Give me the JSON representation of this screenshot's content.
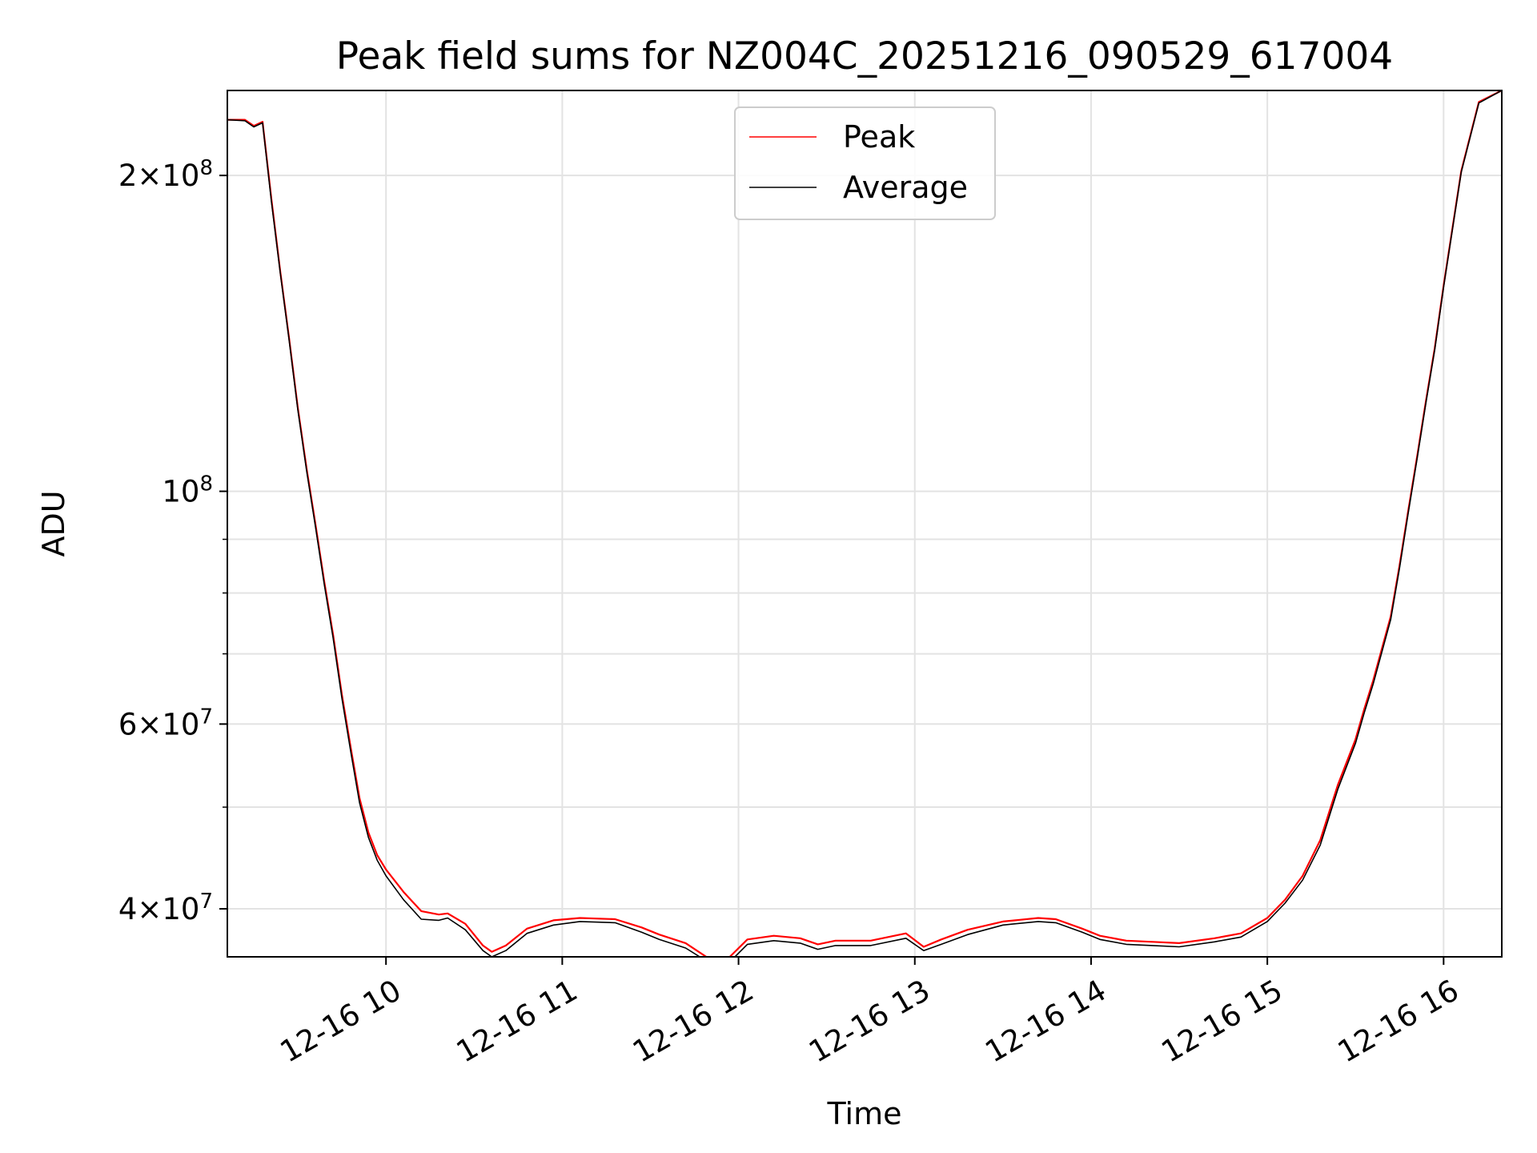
{
  "chart_data": {
    "type": "line",
    "title": "Peak field sums for NZ004C_20251216_090529_617004",
    "xlabel": "Time",
    "ylabel": "ADU",
    "yscale": "log",
    "xlim": [
      9.1,
      16.33
    ],
    "ylim": [
      36000000,
      241000000
    ],
    "grid": true,
    "legend_position": "upper-center",
    "x_ticks": [
      {
        "value": 10,
        "label": "12-16 10"
      },
      {
        "value": 11,
        "label": "12-16 11"
      },
      {
        "value": 12,
        "label": "12-16 12"
      },
      {
        "value": 13,
        "label": "12-16 13"
      },
      {
        "value": 14,
        "label": "12-16 14"
      },
      {
        "value": 15,
        "label": "12-16 15"
      },
      {
        "value": 16,
        "label": "12-16 16"
      }
    ],
    "y_major_ticks": [
      {
        "value": 40000000,
        "mantissa": "4",
        "exponent": "7"
      },
      {
        "value": 60000000,
        "mantissa": "6",
        "exponent": "7"
      },
      {
        "value": 100000000,
        "mantissa": "",
        "exponent": "8"
      },
      {
        "value": 200000000,
        "mantissa": "2",
        "exponent": "8"
      }
    ],
    "y_minor_ticks": [
      50000000,
      70000000,
      80000000,
      90000000
    ],
    "series": [
      {
        "name": "Peak",
        "color": "#ff0000",
        "x": [
          9.1,
          9.2,
          9.25,
          9.3,
          9.35,
          9.4,
          9.45,
          9.5,
          9.55,
          9.6,
          9.65,
          9.7,
          9.75,
          9.8,
          9.85,
          9.9,
          9.95,
          10.0,
          10.1,
          10.2,
          10.3,
          10.35,
          10.45,
          10.55,
          10.6,
          10.68,
          10.8,
          10.95,
          11.1,
          11.3,
          11.45,
          11.55,
          11.7,
          11.85,
          11.95,
          12.05,
          12.2,
          12.35,
          12.45,
          12.55,
          12.75,
          12.95,
          13.05,
          13.15,
          13.3,
          13.5,
          13.7,
          13.8,
          13.95,
          14.05,
          14.2,
          14.35,
          14.5,
          14.7,
          14.85,
          15.0,
          15.1,
          15.2,
          15.3,
          15.4,
          15.5,
          15.55,
          15.6,
          15.7,
          15.75,
          15.8,
          15.85,
          15.9,
          15.95,
          16.0,
          16.05,
          16.1,
          16.2,
          16.33
        ],
        "y": [
          226000000,
          226000000,
          223000000,
          225000000,
          190000000,
          162000000,
          140000000,
          120000000,
          105000000,
          93000000,
          82000000,
          73000000,
          64000000,
          57000000,
          51000000,
          47300000,
          45000000,
          43600000,
          41500000,
          39800000,
          39500000,
          39600000,
          38700000,
          36900000,
          36400000,
          36900000,
          38300000,
          39000000,
          39200000,
          39100000,
          38400000,
          37800000,
          37100000,
          35700000,
          36000000,
          37400000,
          37700000,
          37500000,
          37000000,
          37300000,
          37300000,
          37900000,
          36800000,
          37400000,
          38200000,
          38900000,
          39200000,
          39100000,
          38300000,
          37700000,
          37300000,
          37200000,
          37100000,
          37500000,
          37900000,
          39200000,
          40800000,
          43000000,
          46500000,
          52500000,
          58000000,
          62000000,
          66000000,
          76000000,
          85000000,
          96000000,
          108000000,
          122000000,
          137000000,
          157000000,
          178000000,
          202000000,
          235000000,
          241000000
        ]
      },
      {
        "name": "Average",
        "color": "#000000",
        "x": [
          9.1,
          9.2,
          9.25,
          9.3,
          9.35,
          9.4,
          9.45,
          9.5,
          9.55,
          9.6,
          9.65,
          9.7,
          9.75,
          9.8,
          9.85,
          9.9,
          9.95,
          10.0,
          10.1,
          10.2,
          10.3,
          10.35,
          10.45,
          10.55,
          10.6,
          10.68,
          10.8,
          10.95,
          11.1,
          11.3,
          11.45,
          11.55,
          11.7,
          11.85,
          11.95,
          12.05,
          12.2,
          12.35,
          12.45,
          12.55,
          12.75,
          12.95,
          13.05,
          13.15,
          13.3,
          13.5,
          13.7,
          13.8,
          13.95,
          14.05,
          14.2,
          14.35,
          14.5,
          14.7,
          14.85,
          15.0,
          15.1,
          15.2,
          15.3,
          15.4,
          15.5,
          15.55,
          15.6,
          15.7,
          15.75,
          15.8,
          15.85,
          15.9,
          15.95,
          16.0,
          16.05,
          16.1,
          16.2,
          16.33
        ],
        "y": [
          226000000,
          225500000,
          222500000,
          224500000,
          189000000,
          161500000,
          139500000,
          119500000,
          104500000,
          92500000,
          81500000,
          72500000,
          63500000,
          56500000,
          50500000,
          46800000,
          44500000,
          43000000,
          40800000,
          39100000,
          39000000,
          39200000,
          38200000,
          36500000,
          36000000,
          36500000,
          37900000,
          38600000,
          38900000,
          38800000,
          38000000,
          37400000,
          36700000,
          35400000,
          35600000,
          37000000,
          37300000,
          37100000,
          36600000,
          36900000,
          36900000,
          37500000,
          36500000,
          37000000,
          37800000,
          38600000,
          38900000,
          38800000,
          38000000,
          37400000,
          37000000,
          36900000,
          36800000,
          37200000,
          37600000,
          38900000,
          40500000,
          42600000,
          46000000,
          52000000,
          57500000,
          61500000,
          65500000,
          75500000,
          84500000,
          95500000,
          107500000,
          121500000,
          136500000,
          156500000,
          177500000,
          201500000,
          234500000,
          241000000
        ]
      }
    ]
  }
}
